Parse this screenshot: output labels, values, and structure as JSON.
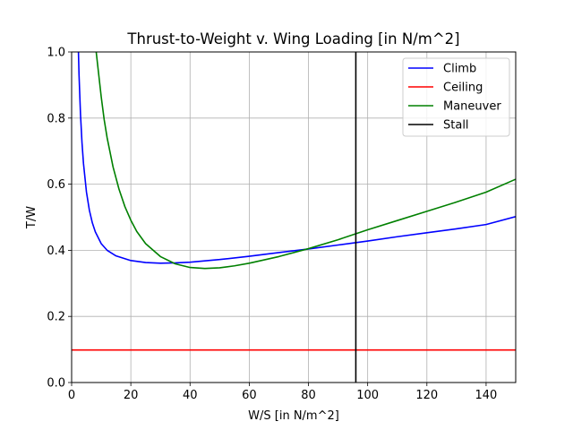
{
  "chart_data": {
    "type": "line",
    "title": "Thrust-to-Weight v. Wing Loading [in N/m^2]",
    "xlabel": "W/S [in N/m^2]",
    "ylabel": "T/W",
    "xlim": [
      0,
      150
    ],
    "ylim": [
      0,
      1.0
    ],
    "xticks": [
      0,
      20,
      40,
      60,
      80,
      100,
      120,
      140
    ],
    "yticks": [
      0.0,
      0.2,
      0.4,
      0.6,
      0.8,
      1.0
    ],
    "xtick_labels": [
      "0",
      "20",
      "40",
      "60",
      "80",
      "100",
      "120",
      "140"
    ],
    "ytick_labels": [
      "0.0",
      "0.2",
      "0.4",
      "0.6",
      "0.8",
      "1.0"
    ],
    "grid": true,
    "legend_position": "top-right",
    "series": [
      {
        "name": "Climb",
        "color": "#0000ff",
        "x": [
          2.3,
          2.5,
          3,
          3.5,
          4,
          5,
          6,
          7,
          8,
          10,
          12,
          15,
          20,
          25,
          30,
          35,
          40,
          50,
          60,
          70,
          80,
          90,
          100,
          110,
          120,
          130,
          140,
          150
        ],
        "y": [
          1.0,
          0.931,
          0.811,
          0.726,
          0.663,
          0.577,
          0.521,
          0.483,
          0.456,
          0.42,
          0.4,
          0.383,
          0.369,
          0.363,
          0.361,
          0.362,
          0.364,
          0.372,
          0.382,
          0.393,
          0.404,
          0.416,
          0.428,
          0.441,
          0.453,
          0.465,
          0.478,
          0.502
        ]
      },
      {
        "name": "Ceiling",
        "color": "#ff0000",
        "x": [
          0,
          150
        ],
        "y": [
          0.0985,
          0.0985
        ]
      },
      {
        "name": "Maneuver",
        "color": "#008000",
        "x": [
          8.3,
          9,
          10,
          11,
          12,
          14,
          16,
          18,
          20,
          22,
          25,
          30,
          35,
          40,
          45,
          50,
          55,
          60,
          70,
          80,
          90,
          100,
          110,
          120,
          130,
          140,
          150
        ],
        "y": [
          1.0,
          0.944,
          0.864,
          0.795,
          0.74,
          0.652,
          0.585,
          0.532,
          0.491,
          0.457,
          0.42,
          0.381,
          0.359,
          0.348,
          0.345,
          0.347,
          0.353,
          0.361,
          0.381,
          0.405,
          0.432,
          0.462,
          0.49,
          0.518,
          0.546,
          0.576,
          0.615
        ]
      },
      {
        "name": "Stall",
        "color": "#000000",
        "x": [
          96,
          96
        ],
        "y": [
          0,
          1.0
        ]
      }
    ]
  }
}
